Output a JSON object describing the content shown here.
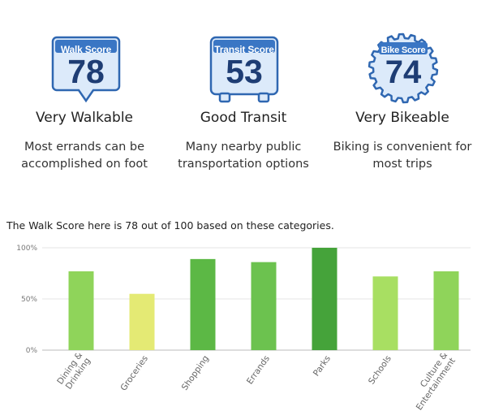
{
  "scores": [
    {
      "badge_title": "Walk Score",
      "value": "78",
      "label": "Very Walkable",
      "description": "Most errands can be accomplished on foot",
      "icon": "walk-score-badge-icon"
    },
    {
      "badge_title": "Transit Score",
      "value": "53",
      "label": "Good Transit",
      "description": "Many nearby public transportation options",
      "icon": "transit-score-badge-icon"
    },
    {
      "badge_title": "Bike Score",
      "value": "74",
      "label": "Very Bikeable",
      "description": "Biking is convenient for most trips",
      "icon": "bike-score-badge-icon"
    }
  ],
  "colors": {
    "badge_fill": "#dceafa",
    "badge_border": "#2f67b1",
    "badge_title_bg": "#3a76c4",
    "badge_number": "#1e3d74"
  },
  "summary_text": "The Walk Score here is 78 out of 100 based on these categories.",
  "chart_data": {
    "type": "bar",
    "categories": [
      "Dining & Drinking",
      "Groceries",
      "Shopping",
      "Errands",
      "Parks",
      "Schools",
      "Culture & Entertainment"
    ],
    "category_label_lines": [
      [
        "Dining &",
        "Drinking"
      ],
      [
        "Groceries"
      ],
      [
        "Shopping"
      ],
      [
        "Errands"
      ],
      [
        "Parks"
      ],
      [
        "Schools"
      ],
      [
        "Culture &",
        "Entertainment"
      ]
    ],
    "values": [
      77,
      55,
      89,
      86,
      100,
      72,
      77
    ],
    "bar_colors": [
      "#8fd45a",
      "#e4ea74",
      "#5cb845",
      "#6cc24f",
      "#45a33a",
      "#a8df62",
      "#8fd45a"
    ],
    "yticks": [
      "0%",
      "50%",
      "100%"
    ],
    "ylim": [
      0,
      100
    ]
  }
}
